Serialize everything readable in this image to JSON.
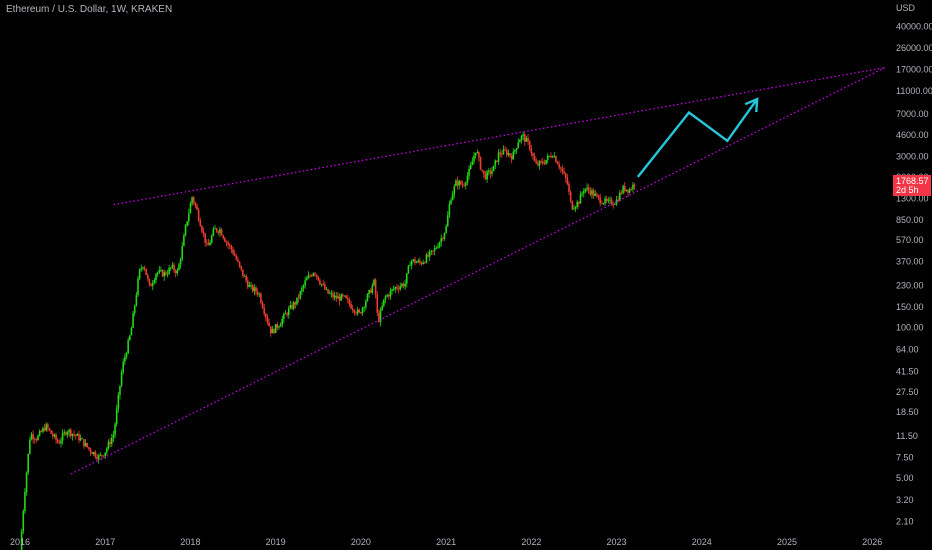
{
  "header": {
    "title": "Ethereum / U.S. Dollar, 1W, KRAKEN"
  },
  "chart_data": {
    "type": "candlestick",
    "symbol": "Ethereum / U.S. Dollar",
    "interval": "1W",
    "exchange": "KRAKEN",
    "currency_label": "USD",
    "y_scale": "log",
    "ylim": [
      1.7,
      60000
    ],
    "xlim": [
      2016.0,
      2026.15
    ],
    "x_ticks": [
      "2016",
      "2017",
      "2018",
      "2019",
      "2020",
      "2021",
      "2022",
      "2023",
      "2024",
      "2025",
      "2026"
    ],
    "y_ticks": [
      {
        "label": "40000.00",
        "value": 40000
      },
      {
        "label": "26000.00",
        "value": 26000
      },
      {
        "label": "17000.00",
        "value": 17000
      },
      {
        "label": "11000.00",
        "value": 11000
      },
      {
        "label": "7000.00",
        "value": 7000
      },
      {
        "label": "4600.00",
        "value": 4600
      },
      {
        "label": "3000.00",
        "value": 3000
      },
      {
        "label": "2000.00",
        "value": 2000
      },
      {
        "label": "1300.00",
        "value": 1300
      },
      {
        "label": "850.00",
        "value": 850
      },
      {
        "label": "570.00",
        "value": 570
      },
      {
        "label": "370.00",
        "value": 370
      },
      {
        "label": "230.00",
        "value": 230
      },
      {
        "label": "150.00",
        "value": 150
      },
      {
        "label": "100.00",
        "value": 100
      },
      {
        "label": "64.00",
        "value": 64
      },
      {
        "label": "41.50",
        "value": 41.5
      },
      {
        "label": "27.50",
        "value": 27.5
      },
      {
        "label": "18.50",
        "value": 18.5
      },
      {
        "label": "11.50",
        "value": 11.5
      },
      {
        "label": "7.50",
        "value": 7.5
      },
      {
        "label": "5.00",
        "value": 5
      },
      {
        "label": "3.20",
        "value": 3.2
      },
      {
        "label": "2.10",
        "value": 2.1
      }
    ],
    "price_path": [
      [
        2016.0,
        1.1
      ],
      [
        2016.05,
        3.5
      ],
      [
        2016.12,
        12
      ],
      [
        2016.2,
        11
      ],
      [
        2016.3,
        14
      ],
      [
        2016.45,
        10
      ],
      [
        2016.55,
        13
      ],
      [
        2016.7,
        11
      ],
      [
        2016.8,
        9
      ],
      [
        2016.93,
        7.5
      ],
      [
        2017.0,
        8.5
      ],
      [
        2017.1,
        12
      ],
      [
        2017.2,
        45
      ],
      [
        2017.3,
        90
      ],
      [
        2017.4,
        300
      ],
      [
        2017.45,
        360
      ],
      [
        2017.52,
        220
      ],
      [
        2017.6,
        300
      ],
      [
        2017.7,
        290
      ],
      [
        2017.78,
        330
      ],
      [
        2017.85,
        300
      ],
      [
        2017.9,
        470
      ],
      [
        2017.95,
        780
      ],
      [
        2018.02,
        1350
      ],
      [
        2018.08,
        1000
      ],
      [
        2018.15,
        650
      ],
      [
        2018.2,
        480
      ],
      [
        2018.28,
        700
      ],
      [
        2018.35,
        700
      ],
      [
        2018.42,
        550
      ],
      [
        2018.5,
        450
      ],
      [
        2018.6,
        300
      ],
      [
        2018.7,
        220
      ],
      [
        2018.8,
        200
      ],
      [
        2018.88,
        130
      ],
      [
        2018.95,
        90
      ],
      [
        2019.05,
        110
      ],
      [
        2019.15,
        140
      ],
      [
        2019.25,
        170
      ],
      [
        2019.35,
        250
      ],
      [
        2019.45,
        310
      ],
      [
        2019.52,
        250
      ],
      [
        2019.6,
        200
      ],
      [
        2019.7,
        180
      ],
      [
        2019.8,
        180
      ],
      [
        2019.9,
        150
      ],
      [
        2019.98,
        130
      ],
      [
        2020.1,
        200
      ],
      [
        2020.16,
        250
      ],
      [
        2020.2,
        110
      ],
      [
        2020.28,
        180
      ],
      [
        2020.4,
        220
      ],
      [
        2020.52,
        240
      ],
      [
        2020.58,
        380
      ],
      [
        2020.7,
        360
      ],
      [
        2020.85,
        450
      ],
      [
        2020.95,
        600
      ],
      [
        2021.0,
        730
      ],
      [
        2021.05,
        1300
      ],
      [
        2021.12,
        1800
      ],
      [
        2021.2,
        1700
      ],
      [
        2021.28,
        2300
      ],
      [
        2021.35,
        3500
      ],
      [
        2021.4,
        2500
      ],
      [
        2021.45,
        2000
      ],
      [
        2021.55,
        2300
      ],
      [
        2021.62,
        3200
      ],
      [
        2021.7,
        3300
      ],
      [
        2021.78,
        3000
      ],
      [
        2021.85,
        4200
      ],
      [
        2021.9,
        4500
      ],
      [
        2021.98,
        3700
      ],
      [
        2022.05,
        2500
      ],
      [
        2022.15,
        2700
      ],
      [
        2022.25,
        3200
      ],
      [
        2022.33,
        2500
      ],
      [
        2022.42,
        1800
      ],
      [
        2022.47,
        1100
      ],
      [
        2022.55,
        1200
      ],
      [
        2022.62,
        1600
      ],
      [
        2022.7,
        1500
      ],
      [
        2022.78,
        1300
      ],
      [
        2022.88,
        1200
      ],
      [
        2022.95,
        1200
      ],
      [
        2023.0,
        1250
      ],
      [
        2023.08,
        1600
      ],
      [
        2023.15,
        1550
      ],
      [
        2023.22,
        1770
      ]
    ],
    "last_price": {
      "label": "1768.57",
      "countdown": "2d 5h",
      "color": "#f23645"
    },
    "annotations": {
      "upper_trendline": {
        "from": [
          2017.1,
          1150
        ],
        "to": [
          2026.15,
          17600
        ],
        "color": "#d500f9",
        "style": "dotted"
      },
      "lower_trendline": {
        "from": [
          2016.6,
          5.4
        ],
        "to": [
          2026.15,
          17600
        ],
        "color": "#d500f9",
        "style": "dotted"
      },
      "projection_arrow": {
        "points": [
          [
            2023.25,
            2000
          ],
          [
            2023.85,
            7200
          ],
          [
            2024.3,
            4100
          ],
          [
            2024.65,
            9400
          ]
        ],
        "color": "#26c6da"
      }
    },
    "colors": {
      "up": "#26d916",
      "down": "#ef3e2f",
      "background": "#000000"
    }
  }
}
